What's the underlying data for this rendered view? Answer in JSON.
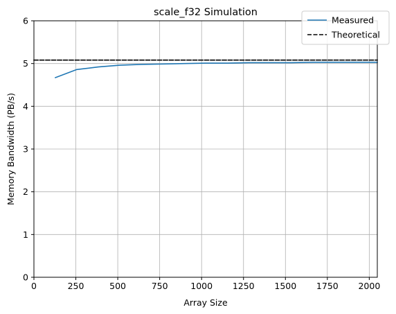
{
  "chart_data": {
    "type": "line",
    "title": "scale_f32 Simulation",
    "xlabel": "Array Size",
    "ylabel": "Memory Bandwidth (PB/s)",
    "xlim": [
      0,
      2048
    ],
    "ylim": [
      0,
      6
    ],
    "xticks": [
      0,
      250,
      500,
      750,
      1000,
      1250,
      1500,
      1750,
      2000
    ],
    "yticks": [
      0,
      1,
      2,
      3,
      4,
      5,
      6
    ],
    "grid": true,
    "legend_position": "top-right",
    "series": [
      {
        "name": "Measured",
        "style": "solid",
        "color": "#1f77b4",
        "x": [
          128,
          256,
          384,
          512,
          640,
          768,
          896,
          1024,
          1152,
          1280,
          1408,
          1536,
          1664,
          1792,
          1920,
          2048
        ],
        "y": [
          4.67,
          4.86,
          4.92,
          4.96,
          4.98,
          4.99,
          5.0,
          5.01,
          5.01,
          5.02,
          5.02,
          5.02,
          5.03,
          5.03,
          5.03,
          5.03
        ]
      },
      {
        "name": "Theoretical",
        "style": "dashed",
        "color": "#000000",
        "x": [
          0,
          2048
        ],
        "y": [
          5.08,
          5.08
        ]
      }
    ]
  }
}
